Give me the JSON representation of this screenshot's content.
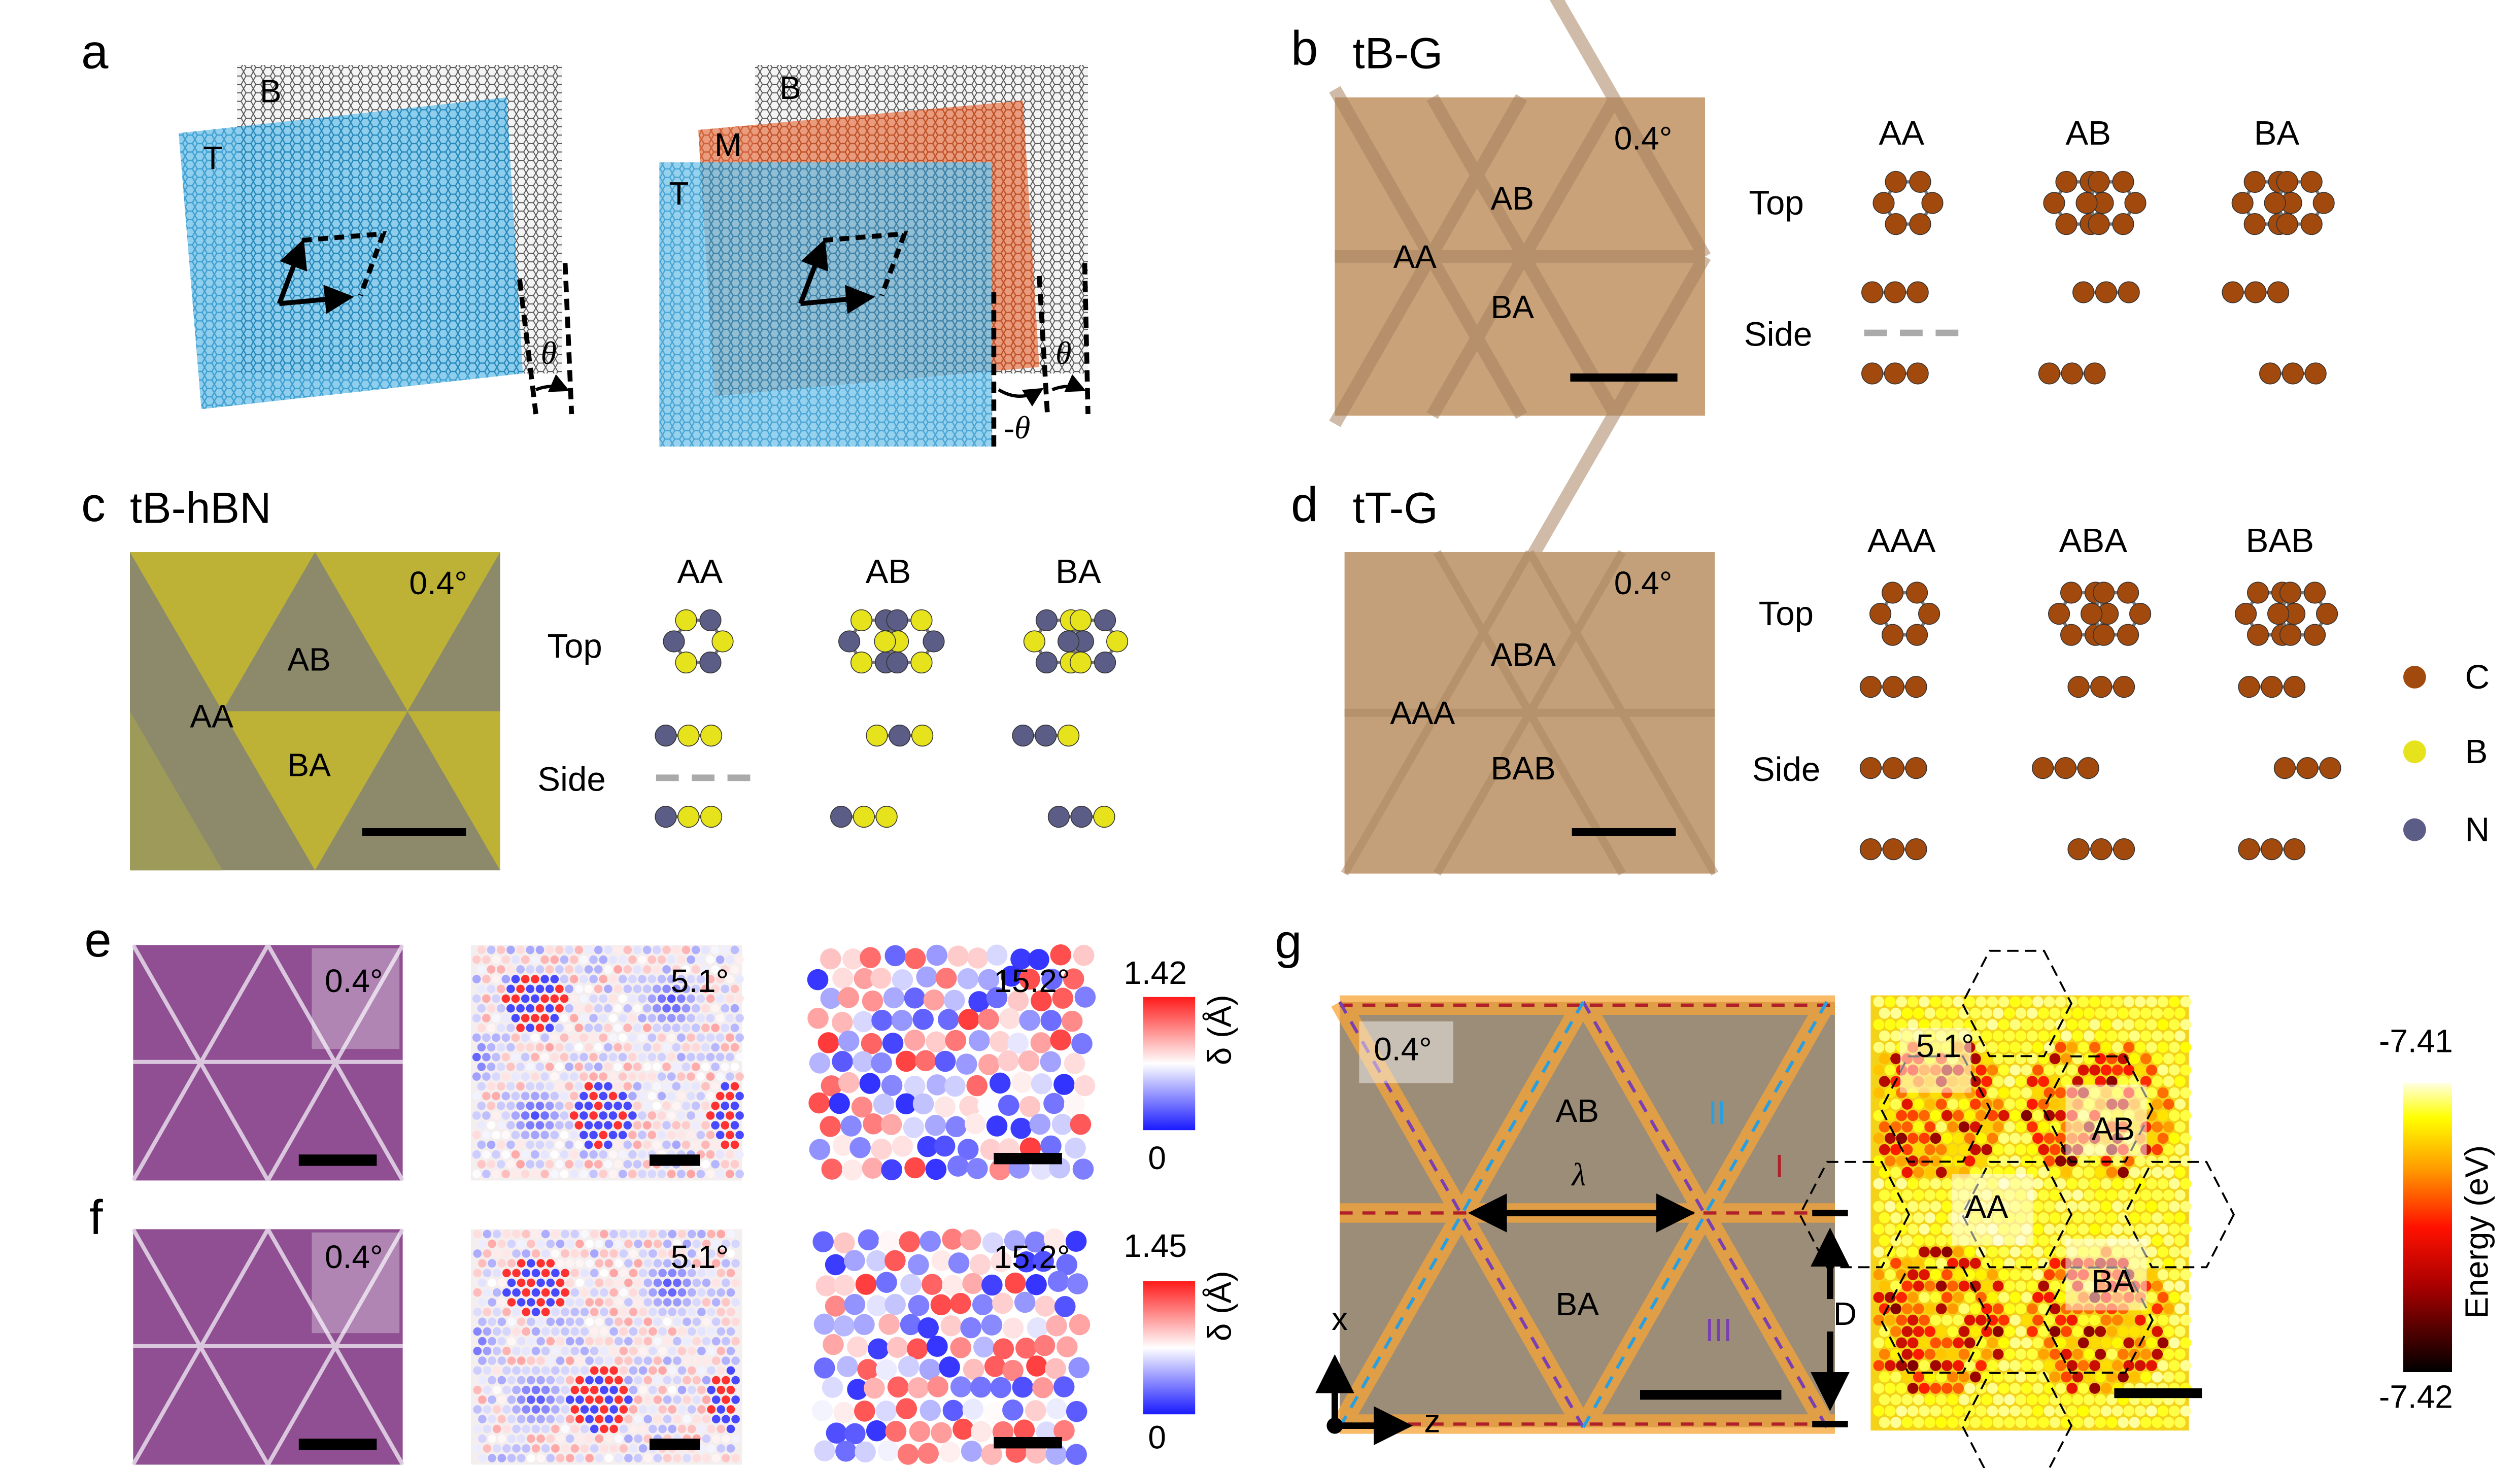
{
  "panels": {
    "a": {
      "label": "a",
      "left": {
        "bottom": "B",
        "top": "T",
        "angle": "θ"
      },
      "right": {
        "bottom": "B",
        "middle": "M",
        "top": "T",
        "angle_pos": "θ",
        "angle_neg": "-θ"
      }
    },
    "b": {
      "label": "b",
      "title": "tB-G",
      "angle": "0.4°",
      "regions": [
        "AB",
        "AA",
        "BA"
      ],
      "stackings": [
        "AA",
        "AB",
        "BA"
      ],
      "top_label": "Top",
      "side_label": "Side"
    },
    "c": {
      "label": "c",
      "title": "tB-hBN",
      "angle": "0.4°",
      "regions": [
        "AB",
        "AA",
        "BA"
      ],
      "stackings": [
        "AA",
        "AB",
        "BA"
      ],
      "top_label": "Top",
      "side_label": "Side"
    },
    "d": {
      "label": "d",
      "title": "tT-G",
      "angle": "0.4°",
      "regions": [
        "ABA",
        "AAA",
        "BAB"
      ],
      "stackings": [
        "AAA",
        "ABA",
        "BAB"
      ],
      "top_label": "Top",
      "side_label": "Side"
    },
    "legend": [
      {
        "element": "C",
        "color": "#a24a0e"
      },
      {
        "element": "B",
        "color": "#e6e21c"
      },
      {
        "element": "N",
        "color": "#5b5d86"
      }
    ],
    "e": {
      "label": "e",
      "angles": [
        "0.4°",
        "5.1°",
        "15.2°"
      ],
      "colorbar": {
        "max": "1.42",
        "min": "0",
        "title": "δ (Å)"
      }
    },
    "f": {
      "label": "f",
      "angles": [
        "0.4°",
        "5.1°",
        "15.2°"
      ],
      "colorbar": {
        "max": "1.45",
        "min": "0",
        "title": "δ (Å)"
      }
    },
    "g": {
      "label": "g",
      "left": {
        "angle": "0.4°",
        "regions": [
          "AB",
          "BA"
        ],
        "wall_labels": [
          "I",
          "II",
          "III"
        ],
        "lambda": "λ",
        "D": "D",
        "axis_x": "x",
        "axis_z": "z"
      },
      "right": {
        "angle": "5.1°",
        "regions": [
          "AB",
          "AA",
          "BA"
        ]
      },
      "colorbar": {
        "max": "-7.41",
        "min": "-7.42",
        "title": "Energy (eV)"
      }
    }
  },
  "colors": {
    "graphene": "#c9a27a",
    "blue_sheet": "#3aa6d8",
    "orange_sheet": "#d9683a",
    "wall_blue": "#2a9fe0",
    "wall_purple": "#7a3fb0",
    "wall_red": "#b0202a"
  }
}
